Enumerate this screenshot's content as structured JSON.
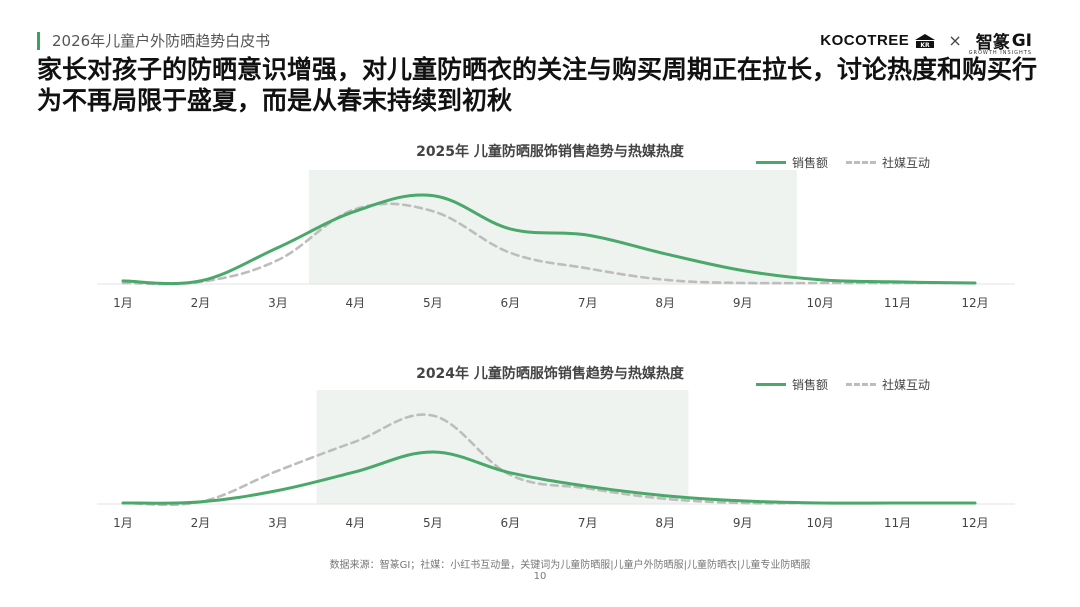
{
  "header": {
    "report_title": "2026年儿童户外防晒趋势白皮书",
    "logo_left": "KOCOTREE",
    "logo_separator": "×",
    "logo_right_cn": "智篆",
    "logo_right_en": "GI",
    "logo_right_sub": "GROWTH INSIGHTS"
  },
  "headline": "家长对孩子的防晒意识增强，对儿童防晒衣的关注与购买周期正在拉长，讨论热度和购买行为不再局限于盛夏，而是从春末持续到初秋",
  "colors": {
    "sales": "#4aa86a",
    "social": "#bdbdbd",
    "highlight": "#eef3f0",
    "accent": "#3aa35a"
  },
  "chart_data": [
    {
      "type": "line",
      "title": "2025年 儿童防晒服饰销售趋势与热媒热度",
      "categories": [
        "1月",
        "2月",
        "3月",
        "4月",
        "5月",
        "6月",
        "7月",
        "8月",
        "9月",
        "10月",
        "11月",
        "12月"
      ],
      "series": [
        {
          "name": "销售额",
          "style": "solid",
          "values": [
            3,
            3,
            35,
            70,
            85,
            53,
            47,
            29,
            13,
            4,
            2,
            1
          ]
        },
        {
          "name": "社媒互动",
          "style": "dashed",
          "values": [
            1,
            2,
            23,
            72,
            70,
            30,
            15,
            4,
            1,
            1,
            1,
            1
          ]
        }
      ],
      "highlight_range": [
        2.4,
        8.7
      ],
      "ylim": [
        0,
        100
      ],
      "grid": false,
      "legend_position": "top-right"
    },
    {
      "type": "line",
      "title": "2024年 儿童防晒服饰销售趋势与热媒热度",
      "categories": [
        "1月",
        "2月",
        "3月",
        "4月",
        "5月",
        "6月",
        "7月",
        "8月",
        "9月",
        "10月",
        "11月",
        "12月"
      ],
      "series": [
        {
          "name": "销售额",
          "style": "solid",
          "values": [
            1,
            2,
            13,
            31,
            50,
            30,
            17,
            8,
            3,
            1,
            1,
            1
          ]
        },
        {
          "name": "社媒互动",
          "style": "dashed",
          "values": [
            1,
            2,
            32,
            60,
            85,
            28,
            15,
            5,
            1,
            1,
            1,
            1
          ]
        }
      ],
      "highlight_range": [
        2.5,
        7.3
      ],
      "ylim": [
        0,
        100
      ],
      "grid": false,
      "legend_position": "top-right"
    }
  ],
  "footer": {
    "source": "数据来源：智篆GI；社媒：小红书互动量，关键词为儿童防晒服|儿童户外防晒服|儿童防晒衣|儿童专业防晒服",
    "page_number": "10"
  }
}
